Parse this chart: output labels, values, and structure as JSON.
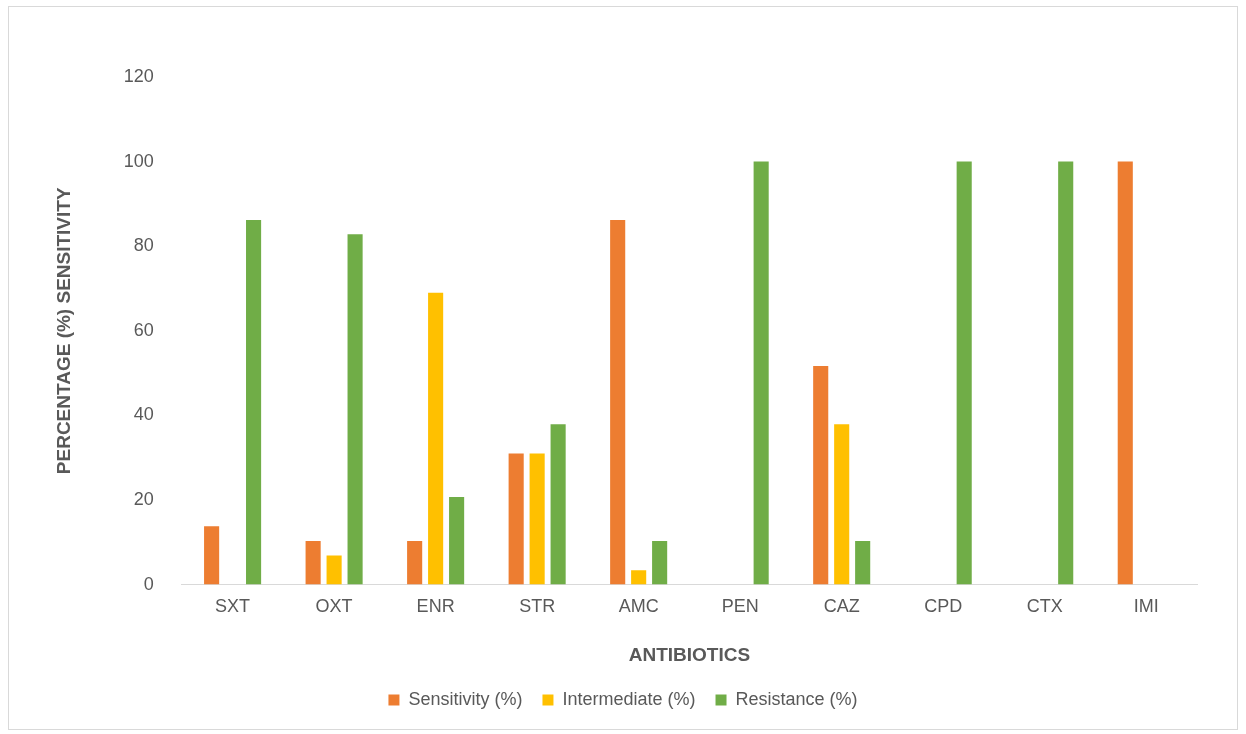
{
  "chart_data": {
    "type": "bar",
    "xlabel": "ANTIBIOTICS",
    "ylabel": "PERCENTAGE (%) SENSITIVITY",
    "categories": [
      "SXT",
      "OXT",
      "ENR",
      "STR",
      "AMC",
      "PEN",
      "CAZ",
      "CPD",
      "CTX",
      "IMI"
    ],
    "series": [
      {
        "name": "Sensitivity (%)",
        "color": "#ed7d31",
        "values": [
          13.8,
          10.3,
          10.3,
          31,
          86.2,
          0,
          51.7,
          0,
          0,
          100
        ]
      },
      {
        "name": "Intermediate (%)",
        "color": "#ffc000",
        "values": [
          0,
          6.9,
          69,
          31,
          3.4,
          0,
          37.9,
          0,
          0,
          0
        ]
      },
      {
        "name": "Resistance (%)",
        "color": "#70ad47",
        "values": [
          86.2,
          82.8,
          20.7,
          37.9,
          10.3,
          100,
          10.3,
          100,
          100,
          0
        ]
      }
    ],
    "ylim": [
      0,
      120
    ],
    "yticks": [
      0,
      20,
      40,
      60,
      80,
      100,
      120
    ],
    "grid": false,
    "legend": "bottom"
  }
}
